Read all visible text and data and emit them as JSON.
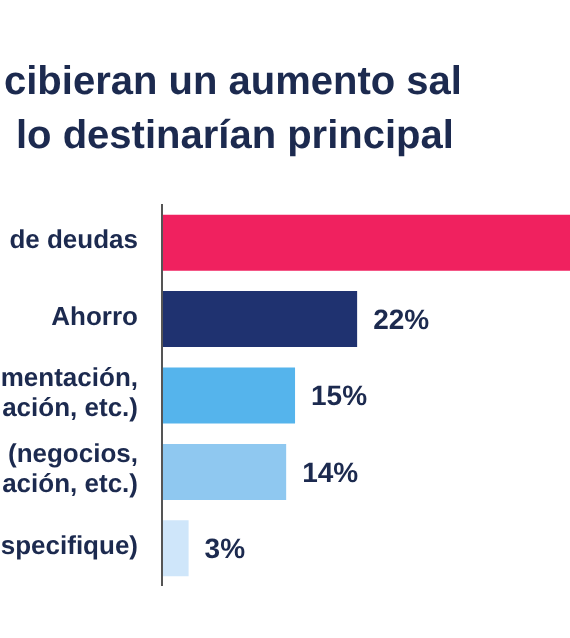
{
  "chart_data": {
    "type": "bar",
    "orientation": "horizontal",
    "title": "cibieran un aumento sal\nlo destinarían principal",
    "categories": [
      "de deudas",
      "Ahorro",
      "mentación,\nación, etc.)",
      "(negocios,\nación, etc.)",
      "specifique)"
    ],
    "values": [
      46,
      22,
      15,
      14,
      3
    ],
    "colors": [
      "#f0215f",
      "#1f3270",
      "#55b4ec",
      "#8fc8f0",
      "#cfe6fa"
    ],
    "value_labels": [
      null,
      "22%",
      "15%",
      "14%",
      "3%"
    ]
  }
}
